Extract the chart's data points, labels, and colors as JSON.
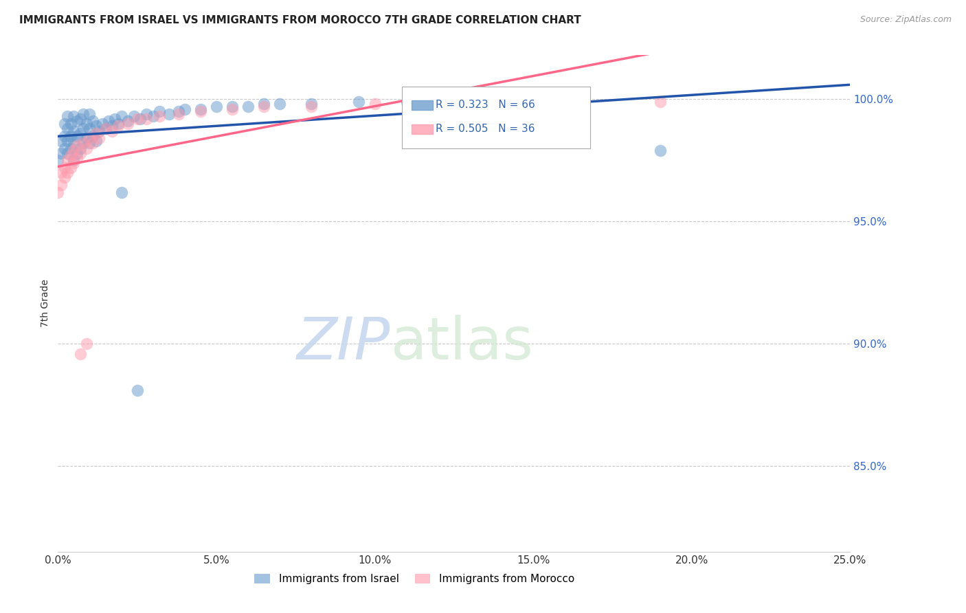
{
  "title": "IMMIGRANTS FROM ISRAEL VS IMMIGRANTS FROM MOROCCO 7TH GRADE CORRELATION CHART",
  "source": "Source: ZipAtlas.com",
  "xlabel_ticks": [
    "0.0%",
    "5.0%",
    "10.0%",
    "15.0%",
    "20.0%",
    "25.0%"
  ],
  "xlabel_vals": [
    0.0,
    0.05,
    0.1,
    0.15,
    0.2,
    0.25
  ],
  "ylabel": "7th Grade",
  "ylabel_ticks": [
    "85.0%",
    "90.0%",
    "95.0%",
    "100.0%"
  ],
  "ylabel_vals": [
    0.85,
    0.9,
    0.95,
    1.0
  ],
  "xlim": [
    0.0,
    0.25
  ],
  "ylim": [
    0.815,
    1.018
  ],
  "israel_color": "#6699CC",
  "morocco_color": "#FF99AA",
  "israel_R": 0.323,
  "israel_N": 66,
  "morocco_R": 0.505,
  "morocco_N": 36,
  "trendline_israel_color": "#2255AA",
  "trendline_morocco_color": "#FF6688",
  "legend_israel": "Immigrants from Israel",
  "legend_morocco": "Immigrants from Morocco",
  "israel_x": [
    0.0,
    0.001,
    0.001,
    0.002,
    0.002,
    0.002,
    0.003,
    0.003,
    0.003,
    0.003,
    0.004,
    0.004,
    0.004,
    0.005,
    0.005,
    0.005,
    0.005,
    0.006,
    0.006,
    0.006,
    0.007,
    0.007,
    0.007,
    0.008,
    0.008,
    0.008,
    0.009,
    0.009,
    0.01,
    0.01,
    0.01,
    0.011,
    0.011,
    0.012,
    0.012,
    0.013,
    0.014,
    0.015,
    0.016,
    0.017,
    0.018,
    0.019,
    0.02,
    0.022,
    0.024,
    0.026,
    0.028,
    0.03,
    0.032,
    0.035,
    0.038,
    0.04,
    0.045,
    0.05,
    0.055,
    0.06,
    0.065,
    0.07,
    0.08,
    0.095,
    0.11,
    0.13,
    0.15,
    0.19,
    0.02,
    0.025
  ],
  "israel_y": [
    0.975,
    0.978,
    0.983,
    0.98,
    0.985,
    0.99,
    0.978,
    0.983,
    0.988,
    0.993,
    0.98,
    0.985,
    0.99,
    0.975,
    0.982,
    0.987,
    0.993,
    0.978,
    0.985,
    0.991,
    0.98,
    0.986,
    0.992,
    0.982,
    0.988,
    0.994,
    0.984,
    0.99,
    0.982,
    0.988,
    0.994,
    0.985,
    0.991,
    0.983,
    0.989,
    0.987,
    0.99,
    0.988,
    0.991,
    0.989,
    0.992,
    0.99,
    0.993,
    0.991,
    0.993,
    0.992,
    0.994,
    0.993,
    0.995,
    0.994,
    0.995,
    0.996,
    0.996,
    0.997,
    0.997,
    0.997,
    0.998,
    0.998,
    0.998,
    0.999,
    0.999,
    0.999,
    0.999,
    0.979,
    0.962,
    0.881
  ],
  "morocco_x": [
    0.0,
    0.001,
    0.001,
    0.002,
    0.002,
    0.003,
    0.003,
    0.004,
    0.004,
    0.005,
    0.005,
    0.006,
    0.006,
    0.007,
    0.008,
    0.009,
    0.01,
    0.011,
    0.012,
    0.013,
    0.015,
    0.017,
    0.019,
    0.022,
    0.025,
    0.028,
    0.032,
    0.038,
    0.045,
    0.055,
    0.065,
    0.08,
    0.1,
    0.19,
    0.007,
    0.009
  ],
  "morocco_y": [
    0.962,
    0.965,
    0.97,
    0.968,
    0.972,
    0.97,
    0.975,
    0.972,
    0.977,
    0.974,
    0.979,
    0.976,
    0.981,
    0.978,
    0.982,
    0.98,
    0.984,
    0.982,
    0.986,
    0.984,
    0.988,
    0.987,
    0.989,
    0.99,
    0.992,
    0.992,
    0.993,
    0.994,
    0.995,
    0.996,
    0.997,
    0.997,
    0.998,
    0.999,
    0.896,
    0.9
  ]
}
